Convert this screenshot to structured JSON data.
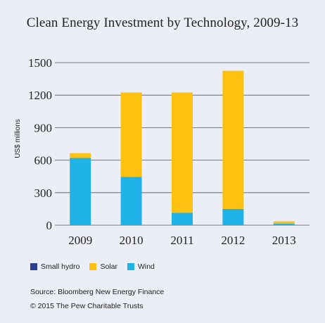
{
  "chart_data": {
    "type": "bar",
    "stacked": true,
    "title": "Clean Energy Investment by Technology, 2009-13",
    "ylabel": "US$ millions",
    "xlabel": "",
    "categories": [
      "2009",
      "2010",
      "2011",
      "2012",
      "2013"
    ],
    "ylim": [
      0,
      1500
    ],
    "yticks": [
      0,
      300,
      600,
      900,
      1200,
      1500
    ],
    "grid": true,
    "legend_position": "bottom-left",
    "series": [
      {
        "name": "Small hydro",
        "color": "#2b3f8f",
        "values": [
          0,
          0,
          0,
          0,
          0
        ]
      },
      {
        "name": "Wind",
        "color": "#1eb2e6",
        "values": [
          620,
          445,
          115,
          150,
          15
        ]
      },
      {
        "name": "Solar",
        "color": "#fdc10f",
        "values": [
          45,
          780,
          1110,
          1275,
          20
        ]
      }
    ]
  },
  "footer": {
    "source": "Source: Bloomberg New Energy Finance",
    "copyright": "© 2015 The Pew Charitable Trusts"
  },
  "legend_order": [
    "Small hydro",
    "Solar",
    "Wind"
  ]
}
